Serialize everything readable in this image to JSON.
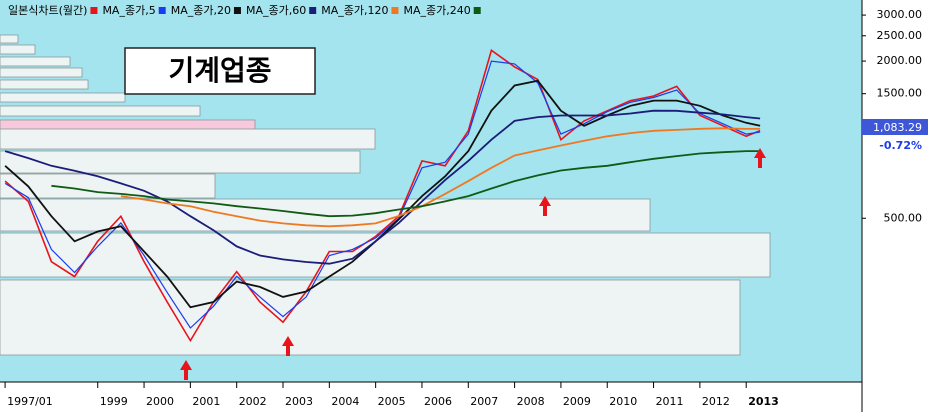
{
  "chart_data": {
    "type": "line",
    "log_scale": true,
    "title": "기계업종",
    "last_value_label": "1,083.29",
    "change_label": "-0.72%",
    "x": [
      1997,
      1997.5,
      1998,
      1998.5,
      1999,
      1999.5,
      2000,
      2000.5,
      2001,
      2001.5,
      2002,
      2002.5,
      2003,
      2003.5,
      2004,
      2004.5,
      2005,
      2005.5,
      2006,
      2006.5,
      2007,
      2007.5,
      2008,
      2008.5,
      2009,
      2009.5,
      2010,
      2010.5,
      2011,
      2011.5,
      2012,
      2012.5,
      2013,
      2013.3
    ],
    "series": [
      {
        "name": "일본식차트(월간)",
        "color": "#e8141c",
        "values": [
          694,
          580,
          341,
          299,
          408,
          509,
          341,
          239,
          170,
          239,
          312,
          239,
          200,
          262,
          373,
          373,
          426,
          509,
          829,
          794,
          1081,
          2200,
          1900,
          1700,
          1000,
          1180,
          1290,
          1410,
          1470,
          1600,
          1240,
          1130,
          1030,
          1083.29
        ]
      },
      {
        "name": "MA_종가,5",
        "color": "#1a3cf0",
        "values": [
          680,
          600,
          380,
          310,
          390,
          480,
          360,
          260,
          190,
          230,
          300,
          250,
          210,
          250,
          360,
          380,
          420,
          500,
          780,
          820,
          1050,
          2000,
          1950,
          1650,
          1050,
          1150,
          1280,
          1390,
          1450,
          1550,
          1260,
          1150,
          1050,
          1070
        ]
      },
      {
        "name": "MA_종가,20",
        "color": "#111111",
        "values": [
          794,
          662,
          509,
          408,
          445,
          466,
          373,
          299,
          228,
          239,
          286,
          273,
          250,
          262,
          299,
          341,
          408,
          495,
          608,
          724,
          904,
          1291,
          1612,
          1681,
          1291,
          1130,
          1237,
          1348,
          1411,
          1411,
          1348,
          1237,
          1160,
          1130
        ]
      },
      {
        "name": "MA_종가,60",
        "color": "#1c1c7a",
        "values": [
          904,
          850,
          794,
          760,
          724,
          680,
          637,
          580,
          509,
          450,
          390,
          360,
          348,
          340,
          335,
          350,
          408,
          480,
          580,
          700,
          829,
          1000,
          1180,
          1220,
          1237,
          1237,
          1237,
          1260,
          1291,
          1290,
          1268,
          1250,
          1220,
          1205
        ]
      },
      {
        "name": "MA_종가,120",
        "color": "#f07820",
        "values": [
          null,
          null,
          null,
          null,
          null,
          608,
          590,
          570,
          556,
          530,
          509,
          490,
          478,
          470,
          466,
          470,
          478,
          510,
          556,
          620,
          694,
          780,
          870,
          910,
          950,
          990,
          1030,
          1060,
          1081,
          1090,
          1101,
          1105,
          1100,
          1100
        ]
      },
      {
        "name": "MA_종가,240",
        "color": "#0f5a14",
        "values": [
          null,
          null,
          666,
          650,
          630,
          620,
          608,
          590,
          580,
          570,
          556,
          545,
          533,
          520,
          509,
          512,
          523,
          540,
          556,
          580,
          608,
          650,
          694,
          730,
          762,
          780,
          794,
          820,
          845,
          865,
          885,
          895,
          904,
          904
        ]
      }
    ],
    "xlim": [
      1996.89,
      2015.5
    ],
    "xticks": [
      {
        "value": 1997,
        "label": "1997/01"
      },
      1999,
      2000,
      2001,
      2002,
      2003,
      2004,
      2005,
      2006,
      2007,
      2008,
      2009,
      2010,
      2011,
      2012,
      2013
    ],
    "ylim": [
      118,
      3427
    ],
    "yticks": [
      {
        "value": 3000,
        "label": "3000.00"
      },
      {
        "value": 2500,
        "label": "2500.00"
      },
      {
        "value": 2000,
        "label": "2000.00"
      },
      {
        "value": 1500,
        "label": "1500.00"
      },
      {
        "value": 500,
        "label": "500.00"
      }
    ]
  }
}
